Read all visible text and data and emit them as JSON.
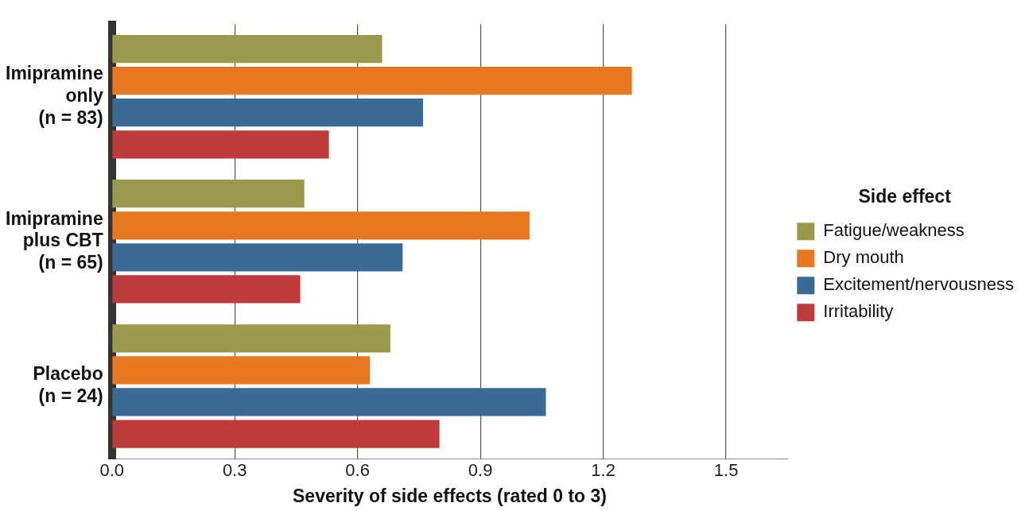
{
  "chart_data": {
    "type": "bar",
    "orientation": "horizontal",
    "xlabel": "Severity of side effects (rated 0 to 3)",
    "legend_title": "Side effect",
    "legend": "right",
    "grid": "x",
    "categories": [
      "Imipramine\nonly\n(n = 83)",
      "Imipramine\nplus CBT\n(n = 65)",
      "Placebo\n(n = 24)"
    ],
    "series": [
      {
        "name": "Fatigue/weakness",
        "color": "#9a9a4c",
        "values": [
          0.66,
          0.47,
          0.68
        ]
      },
      {
        "name": "Dry mouth",
        "color": "#e87722",
        "values": [
          1.27,
          1.02,
          0.63
        ]
      },
      {
        "name": "Excitement/nervousness",
        "color": "#3b6b94",
        "values": [
          0.76,
          0.71,
          1.06
        ]
      },
      {
        "name": "Irritability",
        "color": "#bf3a3a",
        "values": [
          0.53,
          0.46,
          0.8
        ]
      }
    ],
    "xlim": [
      0,
      1.65
    ],
    "xticks": [
      {
        "value": 0,
        "label": "0.0"
      },
      0.3,
      0.6,
      0.9,
      1.2,
      1.5
    ]
  }
}
